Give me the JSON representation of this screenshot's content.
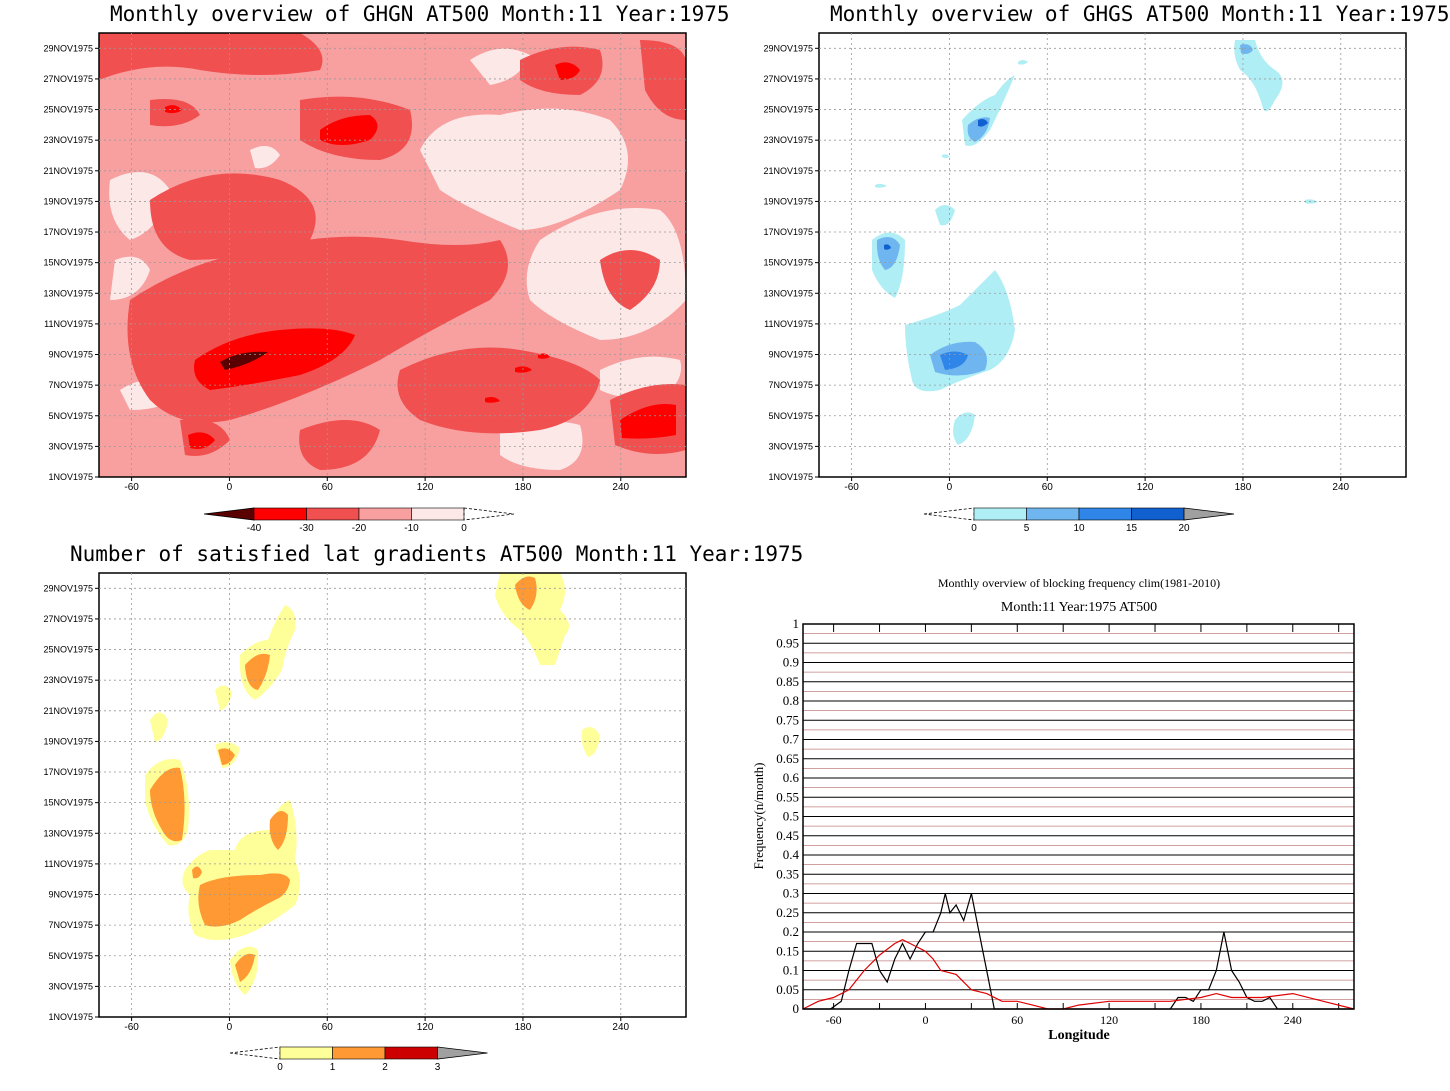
{
  "panels": {
    "ghgn": {
      "title": "Monthly overview of GHGN AT500 Month:11 Year:1975"
    },
    "ghgs": {
      "title": "Monthly overview of GHGS AT500 Month:11 Year:1975"
    },
    "grad": {
      "title": "Number of satisfied lat gradients AT500 Month:11 Year:1975"
    },
    "freq": {
      "title": "Monthly overview of blocking frequency clim(1981-2010)",
      "subtitle": "Month:11 Year:1975  AT500"
    }
  },
  "chart_data": [
    {
      "type": "heatmap",
      "title": "Monthly overview of GHGN AT500 Month:11 Year:1975",
      "x_ticks": [
        "-60",
        "0",
        "60",
        "120",
        "180",
        "240"
      ],
      "y_ticks": [
        "1NOV1975",
        "3NOV1975",
        "5NOV1975",
        "7NOV1975",
        "9NOV1975",
        "11NOV1975",
        "13NOV1975",
        "15NOV1975",
        "17NOV1975",
        "19NOV1975",
        "21NOV1975",
        "23NOV1975",
        "25NOV1975",
        "27NOV1975",
        "29NOV1975"
      ],
      "colorbar": {
        "labels": [
          "-40",
          "-30",
          "-20",
          "-10",
          "0"
        ],
        "colors": [
          "#5a0000",
          "#ff0000",
          "#f05050",
          "#f8a0a0",
          "#fde8e8"
        ]
      }
    },
    {
      "type": "heatmap",
      "title": "Monthly overview of GHGS AT500 Month:11 Year:1975",
      "x_ticks": [
        "-60",
        "0",
        "60",
        "120",
        "180",
        "240"
      ],
      "y_ticks": [
        "1NOV1975",
        "3NOV1975",
        "5NOV1975",
        "7NOV1975",
        "9NOV1975",
        "11NOV1975",
        "13NOV1975",
        "15NOV1975",
        "17NOV1975",
        "19NOV1975",
        "21NOV1975",
        "23NOV1975",
        "25NOV1975",
        "27NOV1975",
        "29NOV1975"
      ],
      "colorbar": {
        "labels": [
          "0",
          "5",
          "10",
          "15",
          "20"
        ],
        "colors": [
          "#b0eef5",
          "#6fb6f0",
          "#2f86e8",
          "#1060d0",
          "#a0a0a0"
        ]
      }
    },
    {
      "type": "heatmap",
      "title": "Number of satisfied lat gradients AT500 Month:11 Year:1975",
      "x_ticks": [
        "-60",
        "0",
        "60",
        "120",
        "180",
        "240"
      ],
      "y_ticks": [
        "1NOV1975",
        "3NOV1975",
        "5NOV1975",
        "7NOV1975",
        "9NOV1975",
        "11NOV1975",
        "13NOV1975",
        "15NOV1975",
        "17NOV1975",
        "19NOV1975",
        "21NOV1975",
        "23NOV1975",
        "25NOV1975",
        "27NOV1975",
        "29NOV1975"
      ],
      "colorbar": {
        "labels": [
          "0",
          "1",
          "2",
          "3"
        ],
        "colors": [
          "#ffff99",
          "#ff9933",
          "#cc0000",
          "#a0a0a0"
        ]
      }
    },
    {
      "type": "line",
      "title": "Monthly overview of blocking frequency clim(1981-2010)",
      "subtitle": "Month:11 Year:1975  AT500",
      "xlabel": "Longitude",
      "ylabel": "Frequency(n/month)",
      "xlim": [
        -80,
        280
      ],
      "ylim": [
        0,
        1
      ],
      "x_ticks": [
        "-60",
        "0",
        "60",
        "120",
        "180",
        "240"
      ],
      "y_ticks": [
        "0",
        "0.05",
        "0.1",
        "0.15",
        "0.2",
        "0.25",
        "0.3",
        "0.35",
        "0.4",
        "0.45",
        "0.5",
        "0.55",
        "0.6",
        "0.65",
        "0.7",
        "0.75",
        "0.8",
        "0.85",
        "0.9",
        "0.95",
        "1"
      ],
      "series": [
        {
          "color": "#000000",
          "x": [
            -80,
            -62,
            -55,
            -50,
            -45,
            -40,
            -35,
            -30,
            -25,
            -20,
            -15,
            -10,
            -5,
            0,
            5,
            10,
            13,
            16,
            20,
            25,
            30,
            35,
            40,
            45,
            50,
            60,
            100,
            160,
            165,
            170,
            175,
            180,
            185,
            190,
            195,
            200,
            205,
            210,
            215,
            220,
            225,
            230,
            250,
            280
          ],
          "y": [
            0,
            0,
            0.02,
            0.1,
            0.17,
            0.17,
            0.17,
            0.1,
            0.07,
            0.13,
            0.17,
            0.13,
            0.17,
            0.2,
            0.2,
            0.25,
            0.3,
            0.25,
            0.27,
            0.23,
            0.3,
            0.2,
            0.1,
            0,
            0,
            0,
            0,
            0,
            0.03,
            0.03,
            0.02,
            0.05,
            0.05,
            0.1,
            0.2,
            0.1,
            0.07,
            0.03,
            0.02,
            0.02,
            0.03,
            0,
            0,
            0
          ]
        },
        {
          "color": "#e00000",
          "x": [
            -80,
            -70,
            -60,
            -50,
            -40,
            -30,
            -20,
            -15,
            -10,
            -5,
            0,
            5,
            10,
            20,
            30,
            40,
            50,
            60,
            70,
            80,
            90,
            100,
            120,
            140,
            160,
            180,
            190,
            200,
            220,
            240,
            260,
            280
          ],
          "y": [
            0,
            0.02,
            0.03,
            0.05,
            0.1,
            0.14,
            0.17,
            0.18,
            0.17,
            0.16,
            0.15,
            0.13,
            0.1,
            0.09,
            0.05,
            0.04,
            0.02,
            0.02,
            0.01,
            0,
            0,
            0.01,
            0.02,
            0.02,
            0.02,
            0.03,
            0.04,
            0.03,
            0.03,
            0.04,
            0.02,
            0
          ]
        }
      ]
    }
  ]
}
